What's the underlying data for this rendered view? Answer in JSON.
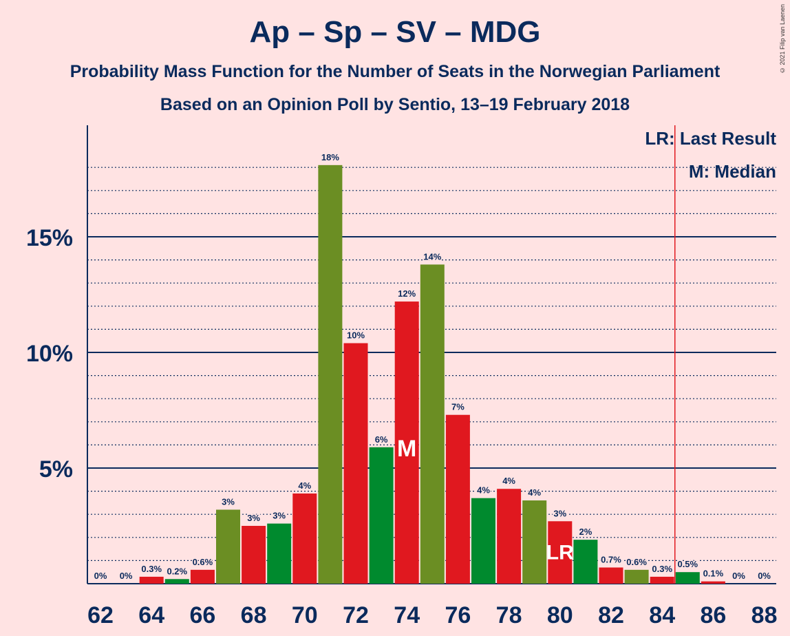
{
  "header": {
    "title": "Ap – Sp – SV – MDG",
    "subtitle": "Probability Mass Function for the Number of Seats in the Norwegian Parliament",
    "subtitle2": "Based on an Opinion Poll by Sentio, 13–19 February 2018",
    "credit": "© 2021 Filip van Laenen"
  },
  "colors": {
    "red": "#E0181F",
    "dark_green": "#008A2E",
    "olive_green": "#6B8E23",
    "navy": "#0A2A5C",
    "background": "#FFE3E3",
    "last_result_line": "#E0181F"
  },
  "chart_data": {
    "type": "bar",
    "x": [
      62,
      63,
      64,
      65,
      66,
      67,
      68,
      69,
      70,
      71,
      72,
      73,
      74,
      75,
      76,
      77,
      78,
      79,
      80,
      81,
      82,
      83,
      84,
      85,
      86,
      87,
      88
    ],
    "values": [
      0,
      0,
      0.3,
      0.2,
      0.6,
      3.2,
      2.5,
      2.6,
      3.9,
      18.1,
      10.4,
      5.9,
      12.2,
      13.8,
      7.3,
      3.7,
      4.1,
      3.6,
      2.7,
      1.9,
      0.7,
      0.6,
      0.3,
      0.5,
      0.1,
      0,
      0
    ],
    "labels": [
      "0%",
      "0%",
      "0.3%",
      "0.2%",
      "0.6%",
      "3%",
      "3%",
      "3%",
      "4%",
      "18%",
      "10%",
      "6%",
      "12%",
      "14%",
      "7%",
      "4%",
      "4%",
      "4%",
      "3%",
      "2%",
      "0.7%",
      "0.6%",
      "0.3%",
      "0.5%",
      "0.1%",
      "0%",
      "0%"
    ],
    "colors": [
      "red",
      "dark_green",
      "red",
      "dark_green",
      "red",
      "olive_green",
      "red",
      "dark_green",
      "red",
      "olive_green",
      "red",
      "dark_green",
      "red",
      "olive_green",
      "red",
      "dark_green",
      "red",
      "olive_green",
      "red",
      "dark_green",
      "red",
      "olive_green",
      "red",
      "dark_green",
      "red",
      "olive_green",
      "red"
    ],
    "x_tick_labels": [
      "62",
      "64",
      "66",
      "68",
      "70",
      "72",
      "74",
      "76",
      "78",
      "80",
      "82",
      "84",
      "86",
      "88"
    ],
    "y_ticks": [
      5,
      10,
      15
    ],
    "y_tick_labels": [
      "5%",
      "10%",
      "15%"
    ],
    "ylim": [
      0,
      20
    ],
    "grid": "dotted every 1%, solid every 5%",
    "median_seat": 74,
    "median_mark": "M",
    "last_result_seat": 80,
    "last_result_mark": "LR",
    "majority_line_x": 84.5,
    "legend": {
      "lr": "LR: Last Result",
      "m": "M: Median",
      "placement": "top-right"
    }
  }
}
